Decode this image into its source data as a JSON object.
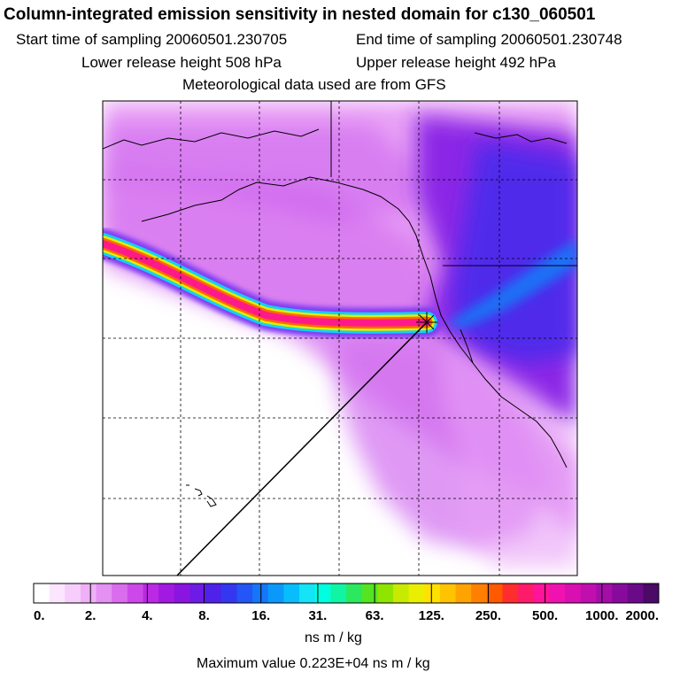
{
  "header": {
    "title": "Column-integrated emission sensitivity in nested domain for c130_060501",
    "start_time": "Start time of sampling 20060501.230705",
    "end_time": "End time of sampling 20060501.230748",
    "lower_release": "Lower release height  508 hPa",
    "upper_release": "Upper release height  492 hPa",
    "met_data": "Meteorological data used are from GFS"
  },
  "chart_data": {
    "type": "heatmap",
    "title": "Column-integrated emission sensitivity in nested domain for c130_060501",
    "colorbar": {
      "tick_labels": [
        "0.",
        "2.",
        "4.",
        "8.",
        "16.",
        "31.",
        "63.",
        "125.",
        "250.",
        "500.",
        "1000.",
        "2000."
      ],
      "tick_values": [
        0,
        2,
        4,
        8,
        16,
        31,
        63,
        125,
        250,
        500,
        1000,
        2000
      ],
      "colors": [
        "#ffffff",
        "#fbe6fd",
        "#f6cdfb",
        "#efb0f7",
        "#e590f3",
        "#da6cee",
        "#cd48e9",
        "#bb29e4",
        "#a219e1",
        "#8a14e0",
        "#6d1be6",
        "#4f22ea",
        "#3537f0",
        "#2455f5",
        "#1576f8",
        "#0a99fb",
        "#08bdfc",
        "#14e4f6",
        "#00ffe0",
        "#10f4a6",
        "#2ce85f",
        "#55e422",
        "#8fe400",
        "#c6ea00",
        "#eaee00",
        "#ffe100",
        "#ffc300",
        "#ffa300",
        "#ff8000",
        "#ff5a00",
        "#ff2d2d",
        "#ff1a6a",
        "#ff149a",
        "#f012b0",
        "#d90fb2",
        "#c00fae",
        "#a40da8",
        "#880a9c",
        "#6b0a88",
        "#4a0a66"
      ],
      "units": "ns m / kg"
    },
    "max_value": 2230,
    "max_value_label": "Maximum value  0.223E+04 ns m / kg",
    "color_scale": "log",
    "features": [
      "high-sensitivity plume extending west from release point",
      "release location marker (star)",
      "coastlines",
      "dashed lat/lon gridlines"
    ]
  }
}
